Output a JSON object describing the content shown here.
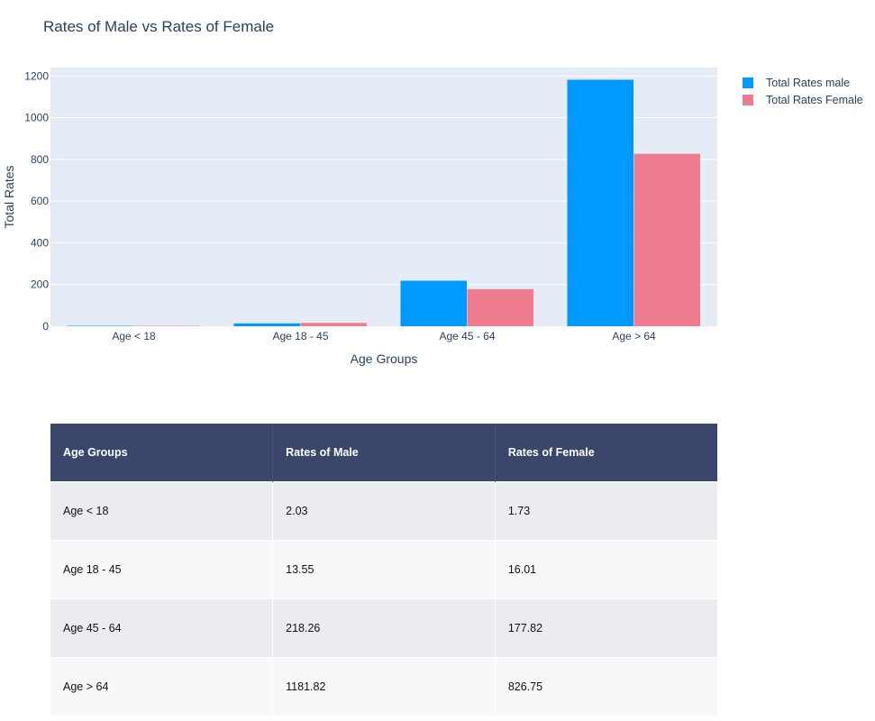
{
  "chart_data": {
    "type": "bar",
    "title": "Rates of Male vs Rates of Female",
    "xlabel": "Age Groups",
    "ylabel": "Total Rates",
    "categories": [
      "Age < 18",
      "Age 18 - 45",
      "Age 45 - 64",
      "Age > 64"
    ],
    "series": [
      {
        "name": "Total Rates male",
        "color": "#0099ff",
        "values": [
          2.03,
          13.55,
          218.26,
          1181.82
        ]
      },
      {
        "name": "Total Rates Female",
        "color": "#ef7b8e",
        "values": [
          1.73,
          16.01,
          177.82,
          826.75
        ]
      }
    ],
    "ylim": [
      0,
      1240
    ],
    "yticks": [
      0,
      200,
      400,
      600,
      800,
      1000,
      1200
    ],
    "grid": true,
    "legend_position": "top-right"
  },
  "table": {
    "headers": [
      "Age Groups",
      "Rates of Male",
      "Rates of Female"
    ],
    "rows": [
      [
        "Age < 18",
        "2.03",
        "1.73"
      ],
      [
        "Age 18 - 45",
        "13.55",
        "16.01"
      ],
      [
        "Age 45 - 64",
        "218.26",
        "177.82"
      ],
      [
        "Age > 64",
        "1181.82",
        "826.75"
      ]
    ],
    "header_color": "#3c456a"
  }
}
